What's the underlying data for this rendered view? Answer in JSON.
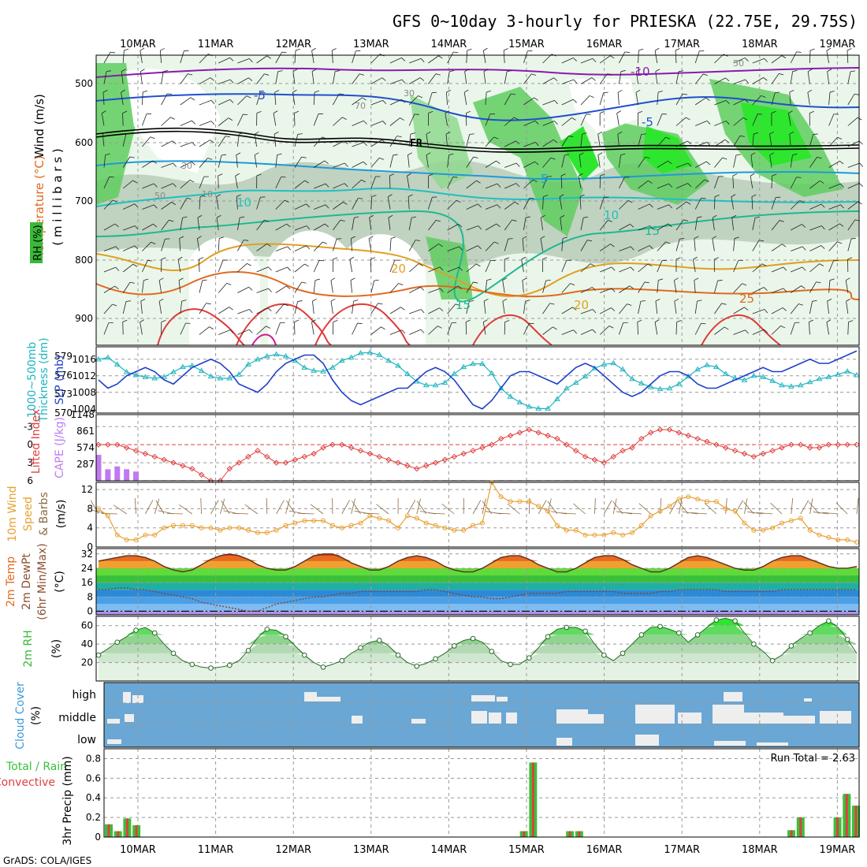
{
  "title": "GFS 0~10day 3-hourly for PRIESKA (22.75E, 29.75S)",
  "footer": "GrADS: COLA/IGES",
  "dates": [
    "10MAR",
    "11MAR",
    "12MAR",
    "13MAR",
    "14MAR",
    "15MAR",
    "16MAR",
    "17MAR",
    "18MAR",
    "19MAR"
  ],
  "colors": {
    "slp": "#1f3fc8",
    "thick": "#1fb5c0",
    "li": "#e04040",
    "cape": "#c07af0",
    "wind": "#e8a030",
    "barb": "#8a6a40",
    "rh": "#3ab83a",
    "cloud": "#6aa7d4",
    "rain": "#3ac03a",
    "conv": "#e04040"
  },
  "panels": {
    "upper": {
      "ylabel_wind": "Wind (m/s)",
      "ylabel_temp": "Temperature (°C)",
      "ylabel_rh": "RH (%)",
      "ylabel_mb": "( m i l l i b a r s )",
      "ticks": [
        "500",
        "600",
        "700",
        "800",
        "900"
      ],
      "contour_labels": [
        "-10",
        "-5",
        "FR",
        "5",
        "10",
        "15",
        "20",
        "25",
        "-5",
        "5",
        "10",
        "15",
        "20",
        "25"
      ],
      "rh_labels": [
        "50",
        "30",
        "70",
        "50",
        "30",
        "10",
        "30",
        "50",
        "30",
        "70"
      ]
    },
    "slp": {
      "ylabel_left": "Thickness (dm)",
      "ylabel_left2": "1000~500mb",
      "ylabel_right": "SLP (mb)",
      "left_ticks": [
        "579",
        "576",
        "573",
        "570"
      ],
      "right_ticks": [
        "1016",
        "1012",
        "1008",
        "1004"
      ]
    },
    "cape": {
      "ylabel_left": "Lifted Index",
      "ylabel_right": "CAPE (J/kg)",
      "left_ticks": [
        "-3",
        "0",
        "3",
        "6"
      ],
      "right_ticks": [
        "1148",
        "861",
        "574",
        "287"
      ]
    },
    "wind10": {
      "ylabel_a": "10m Wind",
      "ylabel_b": "Speed",
      "ylabel_c": "& Barbs",
      "ylabel_unit": "(m/s)",
      "ticks": [
        "12",
        "8",
        "4",
        "0"
      ]
    },
    "temp2m": {
      "ylabel_a": "2m Temp",
      "ylabel_b": "2m DewPt",
      "ylabel_c": "(6hr Min/Max)",
      "ylabel_unit": "(°C)",
      "ticks": [
        "32",
        "24",
        "16",
        "8",
        "0"
      ]
    },
    "rh2m": {
      "ylabel": "2m RH",
      "ylabel_unit": "(%)",
      "ticks": [
        "60",
        "40",
        "20"
      ]
    },
    "cloud": {
      "ylabel": "Cloud Cover",
      "ylabel_unit": "(%)",
      "levels": [
        "high",
        "middle",
        "low"
      ]
    },
    "precip": {
      "ylabel_a": "Total / Rain",
      "ylabel_b": "Convective",
      "ylabel_c": "3hr Precip (mm)",
      "ticks": [
        "0.8",
        "0.6",
        "0.4",
        "0.2",
        "0"
      ],
      "run_total": "Run Total = 2.63"
    }
  },
  "chart_data": [
    {
      "type": "line",
      "panel": "sea-level-pressure-and-thickness",
      "ylabel": "SLP (mb)",
      "ylim_slp": [
        1003,
        1019
      ],
      "ylim_thickness": [
        570,
        580.5
      ],
      "series": [
        {
          "name": "SLP (mb)",
          "values": [
            1011,
            1009,
            1010,
            1012,
            1013,
            1014,
            1013,
            1011,
            1010,
            1012,
            1014,
            1015,
            1016,
            1015,
            1013,
            1010,
            1009,
            1008,
            1010,
            1013,
            1015,
            1016,
            1017,
            1017,
            1015,
            1011,
            1008,
            1006,
            1005,
            1006,
            1007,
            1008,
            1009,
            1009,
            1011,
            1013,
            1014,
            1013,
            1011,
            1008,
            1005,
            1004,
            1006,
            1009,
            1012,
            1013,
            1013,
            1012,
            1011,
            1010,
            1012,
            1014,
            1015,
            1014,
            1012,
            1010,
            1008,
            1007,
            1008,
            1010,
            1012,
            1013,
            1013,
            1012,
            1010,
            1009,
            1009,
            1010,
            1011,
            1012,
            1013,
            1014,
            1013,
            1013,
            1014,
            1015,
            1016,
            1015,
            1015,
            1016,
            1017,
            1018
          ]
        },
        {
          "name": "Thickness (dm)",
          "values": [
            578.5,
            578.8,
            577.7,
            576.5,
            576,
            575.7,
            575.5,
            575.7,
            576.5,
            577.3,
            577.5,
            576.7,
            575.8,
            575.5,
            575.5,
            576.1,
            577.7,
            578.5,
            579,
            579.3,
            579,
            578.3,
            577.2,
            576.7,
            576.6,
            577.2,
            578.3,
            578.8,
            579.5,
            579.6,
            579.2,
            578.3,
            577.5,
            576.2,
            575,
            574.4,
            574.4,
            574.8,
            576.2,
            577.3,
            577.8,
            577.8,
            576.3,
            573.9,
            572.6,
            571.7,
            571,
            570.7,
            570.7,
            572.2,
            573.9,
            574.8,
            575.8,
            577.1,
            577.7,
            577.9,
            576.9,
            575.4,
            574.7,
            574.1,
            573.8,
            573.9,
            574.6,
            575.8,
            576.9,
            577.6,
            577.3,
            576.2,
            575.5,
            575.2,
            575.9,
            575.7,
            575.1,
            574.4,
            574.2,
            574.4,
            574.9,
            575.4,
            575.7,
            576.1,
            576.6,
            576
          ]
        }
      ]
    },
    {
      "type": "bar",
      "panel": "cape-and-lifted-index",
      "ylabel": "CAPE (J/kg)",
      "ylim_cape": [
        0,
        1148
      ],
      "ylim_li": [
        6,
        -5
      ],
      "series": [
        {
          "name": "CAPE (J/kg)",
          "values": [
            450,
            200,
            250,
            200,
            160,
            10,
            10,
            10,
            10,
            10,
            10,
            10,
            10,
            10,
            10,
            10,
            10,
            10,
            10,
            10,
            10,
            10,
            10,
            10,
            10,
            10,
            10,
            10,
            10,
            10,
            10,
            10,
            10,
            10,
            10,
            10,
            10,
            10,
            10,
            10,
            10,
            10,
            10,
            10,
            10,
            10,
            10,
            10,
            10,
            10,
            10,
            10,
            10,
            10,
            10,
            10,
            10,
            10,
            10,
            10,
            10,
            10,
            10,
            10,
            10,
            10,
            10,
            10,
            10,
            10,
            10,
            10,
            10,
            10,
            10,
            10,
            10,
            10,
            10,
            10,
            10,
            10
          ]
        },
        {
          "name": "Lifted Index",
          "values": [
            0,
            0,
            0,
            0.5,
            1,
            1.5,
            2,
            2.5,
            3,
            3.5,
            4,
            5,
            6,
            6,
            4,
            3,
            2,
            1,
            2,
            3,
            3,
            2.5,
            2,
            1.5,
            0.5,
            0,
            0,
            0.5,
            1,
            1.5,
            2,
            2.5,
            3,
            3.5,
            4,
            3.5,
            3,
            2.5,
            2,
            1.5,
            1,
            0.5,
            0,
            -1,
            -1.5,
            -2,
            -2.5,
            -2,
            -1.5,
            -1,
            0,
            1,
            2,
            2.5,
            3,
            2,
            1,
            0.5,
            -1,
            -2,
            -2.5,
            -2.5,
            -2,
            -1.5,
            -1,
            -0.5,
            0,
            0.5,
            1,
            1.5,
            2,
            1.5,
            1,
            0.5,
            0,
            0,
            0.5,
            0.5,
            0,
            0,
            0,
            0
          ]
        }
      ]
    },
    {
      "type": "line",
      "panel": "10m-wind-speed",
      "ylabel": "(m/s)",
      "ylim": [
        0,
        13.5
      ],
      "series": [
        {
          "name": "10m Wind Speed",
          "values": [
            8.0,
            6.5,
            2.5,
            1.5,
            1.5,
            2.5,
            2.5,
            4.0,
            4.5,
            4.5,
            4.5,
            4.0,
            4.0,
            3.5,
            4.0,
            4.0,
            3.5,
            3.0,
            3.0,
            3.5,
            4.5,
            5.0,
            5.5,
            5.5,
            5.5,
            4.5,
            4.0,
            4.5,
            5.0,
            6.5,
            6.0,
            5.5,
            4.0,
            6.5,
            6.0,
            5.0,
            4.5,
            4.0,
            3.5,
            3.5,
            4.5,
            5.0,
            13.5,
            10.5,
            9.5,
            9.5,
            9.5,
            8.5,
            7.5,
            4.5,
            3.5,
            3.5,
            2.5,
            2.5,
            2.5,
            3.0,
            2.5,
            3.0,
            4.5,
            6.5,
            7.5,
            8.5,
            10.0,
            10.5,
            10.0,
            9.5,
            9.5,
            8.0,
            7.5,
            5.0,
            3.5,
            3.5,
            4.0,
            5.0,
            5.5,
            6.0,
            3.5,
            2.5,
            2.0,
            1.5,
            1.5,
            1.0
          ]
        }
      ]
    },
    {
      "type": "area",
      "panel": "2m-temperature-and-dewpoint",
      "ylabel": "(°C)",
      "ylim": [
        -2,
        35
      ],
      "series": [
        {
          "name": "2m Temp",
          "values": [
            28,
            29,
            30,
            31,
            31,
            30,
            28,
            25,
            23,
            22,
            23,
            26,
            29,
            31,
            32,
            31,
            29,
            26,
            24,
            23,
            23,
            25,
            28,
            31,
            32,
            32,
            30,
            27,
            25,
            23,
            23,
            25,
            28,
            30,
            31,
            30,
            28,
            25,
            23,
            22,
            22,
            24,
            27,
            30,
            31,
            31,
            29,
            26,
            24,
            22,
            22,
            24,
            27,
            30,
            31,
            31,
            29,
            26,
            24,
            22,
            22,
            24,
            27,
            30,
            31,
            30,
            28,
            26,
            24,
            23,
            23,
            25,
            28,
            30,
            31,
            31,
            29,
            27,
            25,
            24,
            24,
            25
          ]
        },
        {
          "name": "2m DewPt",
          "values": [
            12,
            12,
            13,
            13,
            12,
            12,
            11,
            10,
            9,
            8,
            7,
            5,
            4,
            3,
            2,
            1,
            0,
            0,
            2,
            4,
            5,
            6,
            7,
            8,
            8,
            9,
            10,
            10,
            11,
            11,
            11,
            11,
            11,
            11,
            11,
            12,
            12,
            11,
            10,
            9,
            8,
            8,
            7,
            7,
            8,
            9,
            10,
            10,
            10,
            10,
            11,
            11,
            11,
            11,
            11,
            11,
            10,
            10,
            10,
            10,
            11,
            11,
            12,
            12,
            12,
            12,
            12,
            11,
            11,
            11,
            11,
            11,
            11,
            12,
            12,
            12,
            12,
            12,
            12,
            12,
            12,
            12
          ]
        }
      ]
    },
    {
      "type": "area",
      "panel": "2m-relative-humidity",
      "ylabel": "(%)",
      "ylim": [
        0,
        70
      ],
      "series": [
        {
          "name": "2m RH",
          "values": [
            28,
            35,
            42,
            48,
            55,
            58,
            52,
            40,
            30,
            22,
            18,
            15,
            14,
            15,
            17,
            22,
            33,
            47,
            56,
            55,
            48,
            38,
            28,
            20,
            15,
            18,
            22,
            30,
            36,
            42,
            44,
            38,
            28,
            20,
            16,
            19,
            24,
            30,
            38,
            44,
            46,
            42,
            32,
            22,
            18,
            18,
            25,
            36,
            48,
            56,
            58,
            58,
            54,
            40,
            28,
            22,
            30,
            40,
            50,
            58,
            59,
            56,
            52,
            42,
            50,
            58,
            66,
            68,
            65,
            52,
            40,
            32,
            22,
            28,
            38,
            46,
            52,
            60,
            65,
            58,
            45,
            30
          ]
        }
      ]
    },
    {
      "type": "bar",
      "panel": "3hr-precipitation",
      "ylabel": "3hr Precip (mm)",
      "ylim": [
        0,
        0.9
      ],
      "series": [
        {
          "name": "Total / Rain",
          "values": [
            0.13,
            0.06,
            0.19,
            0.12,
            0,
            0,
            0,
            0,
            0,
            0,
            0,
            0,
            0,
            0,
            0,
            0,
            0,
            0,
            0,
            0,
            0,
            0,
            0,
            0,
            0,
            0,
            0,
            0,
            0,
            0,
            0,
            0,
            0,
            0,
            0,
            0,
            0,
            0,
            0,
            0,
            0,
            0,
            0,
            0,
            0,
            0.06,
            0.76,
            0,
            0,
            0,
            0.06,
            0.06,
            0,
            0,
            0,
            0,
            0,
            0,
            0,
            0,
            0,
            0,
            0,
            0,
            0,
            0,
            0,
            0,
            0,
            0,
            0,
            0,
            0,
            0,
            0.07,
            0.2,
            0,
            0,
            0,
            0.2,
            0.44,
            0.32
          ]
        }
      ]
    }
  ]
}
